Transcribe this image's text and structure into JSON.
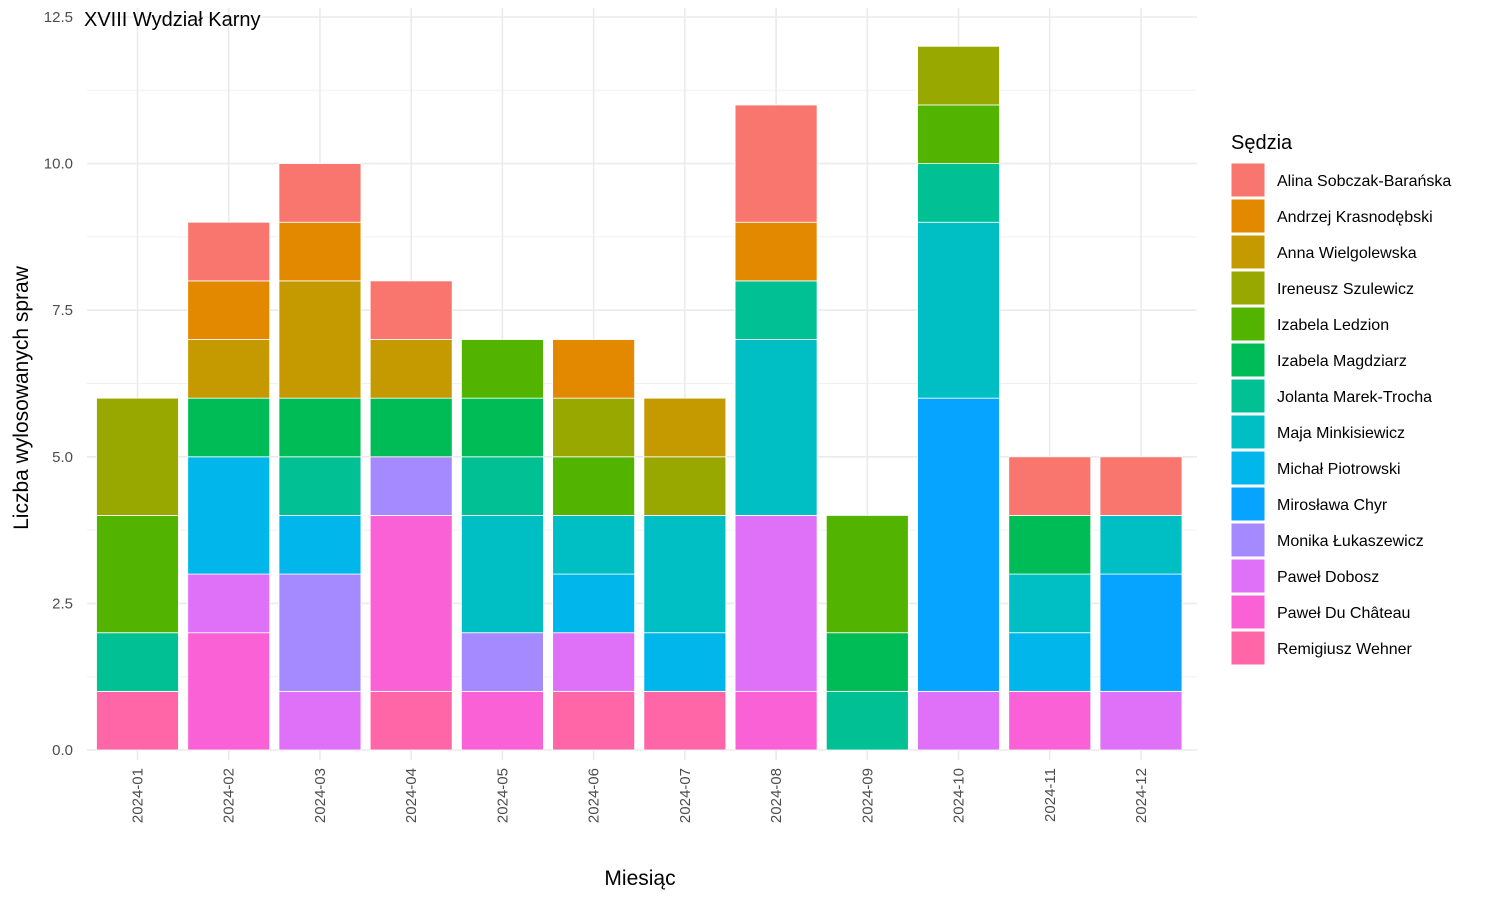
{
  "chart_data": {
    "type": "bar",
    "stacked": true,
    "title": "XVIII Wydział Karny",
    "xlabel": "Miesiąc",
    "ylabel": "Liczba wylosowanych spraw",
    "ylim": [
      0,
      12.5
    ],
    "yticks": [
      0,
      2.5,
      5,
      7.5,
      10,
      12.5
    ],
    "ytick_labels": [
      "0.0",
      "2.5",
      "5.0",
      "7.5",
      "10.0",
      "12.5"
    ],
    "grid": true,
    "legend_title": "Sędzia",
    "legend_position": "right",
    "categories": [
      "2024-01",
      "2024-02",
      "2024-03",
      "2024-04",
      "2024-05",
      "2024-06",
      "2024-07",
      "2024-08",
      "2024-09",
      "2024-10",
      "2024-11",
      "2024-12"
    ],
    "series": [
      {
        "name": "Alina Sobczak-Barańska",
        "color": "#F8766D",
        "values": [
          0,
          1,
          1,
          1,
          0,
          0,
          0,
          2,
          0,
          0,
          1,
          1
        ]
      },
      {
        "name": "Andrzej Krasnodębski",
        "color": "#E38900",
        "values": [
          0,
          1,
          1,
          0,
          0,
          1,
          0,
          1,
          0,
          0,
          0,
          0
        ]
      },
      {
        "name": "Anna Wielgolewska",
        "color": "#C49A00",
        "values": [
          0,
          1,
          2,
          1,
          0,
          0,
          1,
          0,
          0,
          0,
          0,
          0
        ]
      },
      {
        "name": "Ireneusz Szulewicz",
        "color": "#99A800",
        "values": [
          2,
          0,
          0,
          0,
          0,
          1,
          1,
          0,
          0,
          1,
          0,
          0
        ]
      },
      {
        "name": "Izabela Ledzion",
        "color": "#53B400",
        "values": [
          2,
          0,
          0,
          0,
          1,
          1,
          0,
          0,
          2,
          1,
          0,
          0
        ]
      },
      {
        "name": "Izabela Magdziarz",
        "color": "#00BC56",
        "values": [
          0,
          1,
          1,
          1,
          1,
          0,
          0,
          0,
          1,
          0,
          1,
          0
        ]
      },
      {
        "name": "Jolanta Marek-Trocha",
        "color": "#00C094",
        "values": [
          1,
          0,
          1,
          0,
          1,
          0,
          0,
          1,
          1,
          1,
          0,
          0
        ]
      },
      {
        "name": "Maja Minkisiewicz",
        "color": "#00BFC4",
        "values": [
          0,
          0,
          0,
          0,
          2,
          1,
          2,
          3,
          0,
          3,
          1,
          1
        ]
      },
      {
        "name": "Michał Piotrowski",
        "color": "#00B6EB",
        "values": [
          0,
          2,
          1,
          0,
          0,
          1,
          1,
          0,
          0,
          0,
          1,
          0
        ]
      },
      {
        "name": "Mirosława Chyr",
        "color": "#06A4FF",
        "values": [
          0,
          0,
          0,
          0,
          0,
          0,
          0,
          0,
          0,
          5,
          0,
          2
        ]
      },
      {
        "name": "Monika Łukaszewicz",
        "color": "#A58AFF",
        "values": [
          0,
          0,
          2,
          1,
          1,
          0,
          0,
          0,
          0,
          0,
          0,
          0
        ]
      },
      {
        "name": "Paweł Dobosz",
        "color": "#DF70F8",
        "values": [
          0,
          1,
          1,
          0,
          0,
          1,
          0,
          3,
          0,
          1,
          0,
          1
        ]
      },
      {
        "name": "Paweł Du Château",
        "color": "#FB61D7",
        "values": [
          0,
          2,
          0,
          3,
          1,
          0,
          0,
          1,
          0,
          0,
          1,
          0
        ]
      },
      {
        "name": "Remigiusz Wehner",
        "color": "#FF66A8",
        "values": [
          1,
          0,
          0,
          1,
          0,
          1,
          1,
          0,
          0,
          0,
          0,
          0
        ]
      }
    ]
  }
}
